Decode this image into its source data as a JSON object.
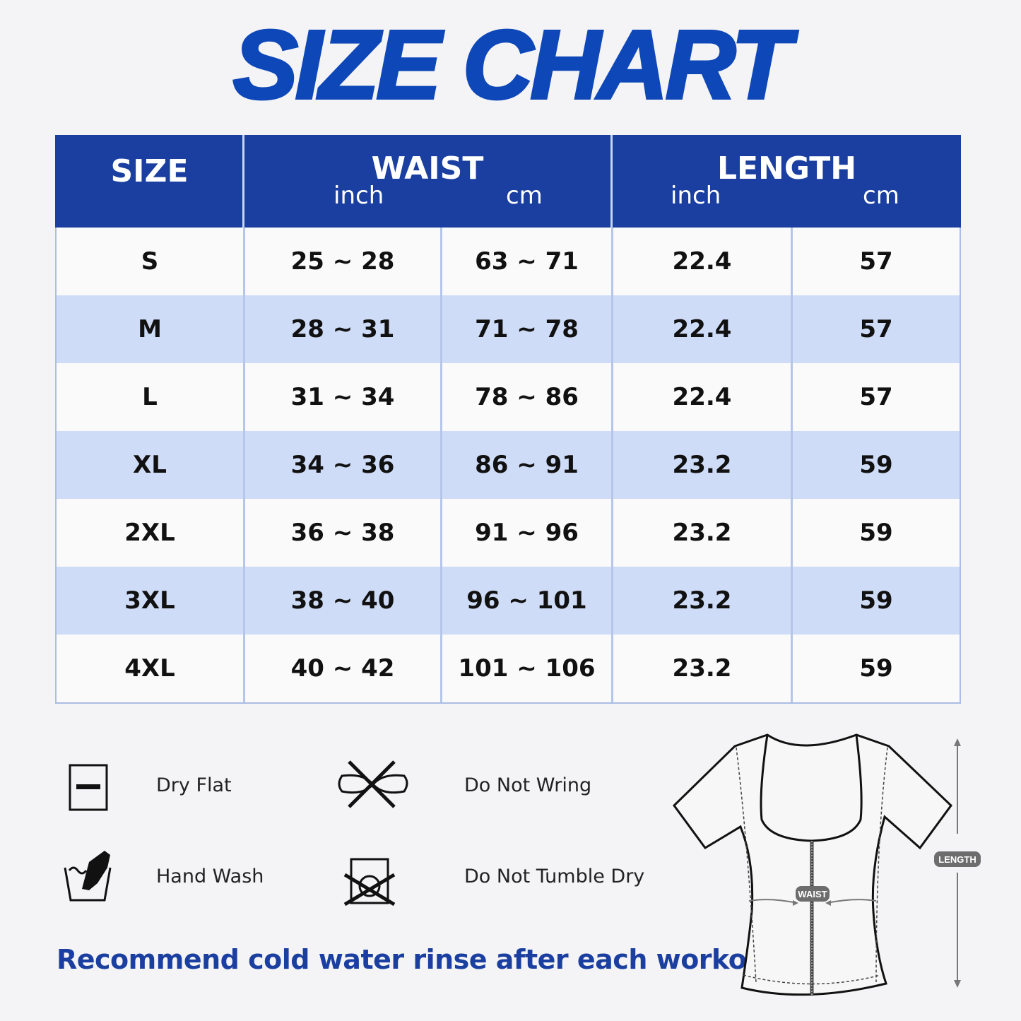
{
  "title": "SIZE CHART",
  "table": {
    "headers": {
      "size": "SIZE",
      "waist": "WAIST",
      "length": "LENGTH",
      "inch": "inch",
      "cm": "cm"
    },
    "rows": [
      [
        "S",
        "25 ~ 28",
        "63 ~ 71",
        "22.4",
        "57"
      ],
      [
        "M",
        "28 ~ 31",
        "71 ~ 78",
        "22.4",
        "57"
      ],
      [
        "L",
        "31 ~ 34",
        "78 ~ 86",
        "22.4",
        "57"
      ],
      [
        "XL",
        "34 ~ 36",
        "86 ~ 91",
        "23.2",
        "59"
      ],
      [
        "2XL",
        "36 ~ 38",
        "91 ~ 96",
        "23.2",
        "59"
      ],
      [
        "3XL",
        "38 ~ 40",
        "96 ~ 101",
        "23.2",
        "59"
      ],
      [
        "4XL",
        "40 ~ 42",
        "101 ~ 106",
        "23.2",
        "59"
      ]
    ]
  },
  "care": {
    "dry_flat": "Dry Flat",
    "hand_wash": "Hand Wash",
    "do_not_wring": "Do Not Wring",
    "do_not_tumble_dry": "Do Not Tumble Dry"
  },
  "note": "Recommend cold water rinse after each workout.",
  "diagram": {
    "waist_label": "WAIST",
    "length_label": "LENGTH"
  },
  "colors": {
    "brand_blue": "#1a3fa0",
    "title_blue": "#0d47b8",
    "alt_row": "#cfdcf7"
  }
}
